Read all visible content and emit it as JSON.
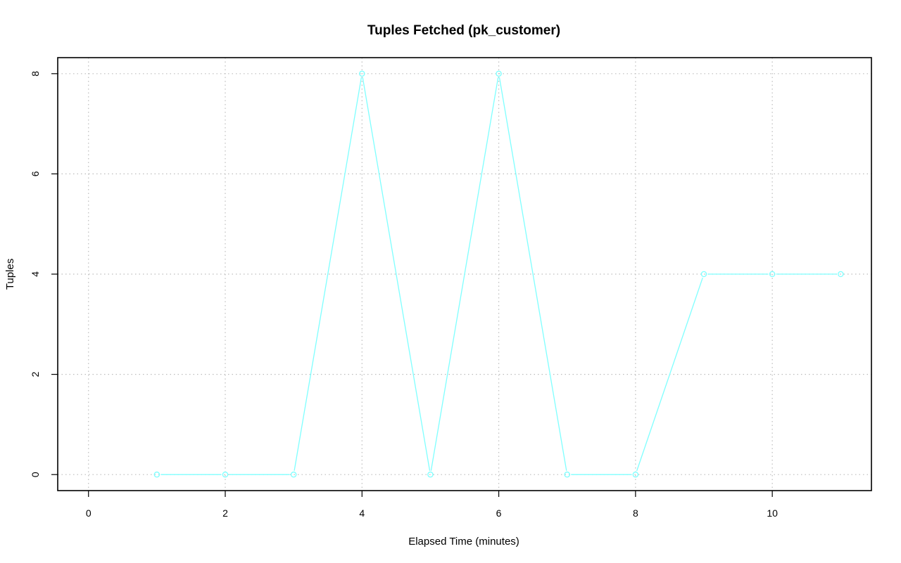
{
  "chart_data": {
    "type": "line",
    "title": "Tuples Fetched (pk_customer)",
    "xlabel": "Elapsed Time (minutes)",
    "ylabel": "Tuples",
    "xlim": [
      -0.45,
      11.45
    ],
    "ylim": [
      -0.32,
      8.32
    ],
    "xticks": [
      0,
      2,
      4,
      6,
      8,
      10
    ],
    "yticks": [
      0,
      2,
      4,
      6,
      8
    ],
    "grid": true,
    "legend": "none",
    "series": [
      {
        "color": "#7fffff",
        "x": [
          1,
          2,
          3,
          4,
          5,
          6,
          7,
          8,
          9,
          10,
          11
        ],
        "y": [
          0,
          0,
          0,
          8,
          0,
          8,
          0,
          0,
          4,
          4,
          4
        ]
      }
    ]
  }
}
